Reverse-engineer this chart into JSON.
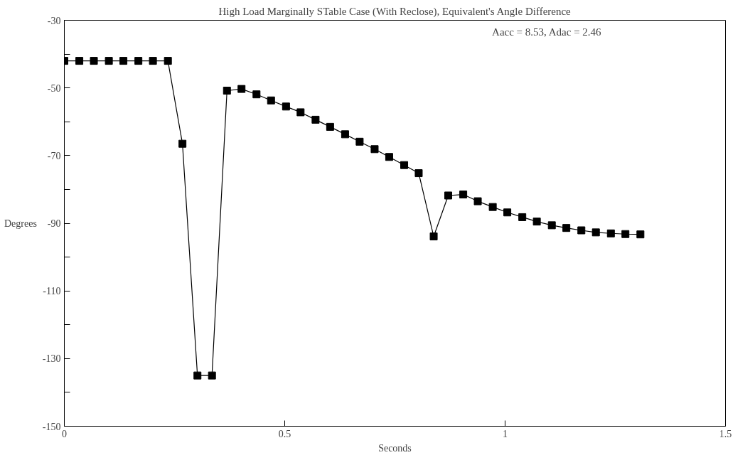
{
  "chart_data": {
    "type": "line",
    "title": "High Load Marginally STable Case (With Reclose), Equivalent's Angle Difference",
    "xlabel": "Seconds",
    "ylabel": "Degrees",
    "x": [
      0,
      0.034,
      0.067,
      0.101,
      0.134,
      0.168,
      0.201,
      0.235,
      0.268,
      0.302,
      0.335,
      0.369,
      0.402,
      0.436,
      0.469,
      0.503,
      0.536,
      0.57,
      0.603,
      0.637,
      0.67,
      0.704,
      0.737,
      0.771,
      0.804,
      0.838,
      0.871,
      0.905,
      0.938,
      0.972,
      1.005,
      1.039,
      1.072,
      1.106,
      1.139,
      1.173,
      1.206,
      1.24,
      1.273,
      1.307
    ],
    "series": [
      {
        "color": "#000000",
        "values": [
          -42,
          -42,
          -42,
          -42,
          -42,
          -42,
          -42,
          -42,
          -66.5,
          -135,
          -135,
          -50.8,
          -50.3,
          -51.9,
          -53.7,
          -55.5,
          -57.2,
          -59.4,
          -61.5,
          -63.7,
          -65.9,
          -68.1,
          -70.4,
          -72.8,
          -75.2,
          -93.9,
          -81.8,
          -81.5,
          -83.5,
          -85.2,
          -86.8,
          -88.2,
          -89.5,
          -90.6,
          -91.4,
          -92.1,
          -92.7,
          -93,
          -93.2,
          -93.3
        ]
      }
    ],
    "xlim": [
      0,
      1.5
    ],
    "xticks": [
      0,
      0.5,
      1,
      1.5
    ],
    "ylim": [
      -150,
      -30
    ],
    "yticks": [
      -150,
      {
        "value": -140,
        "label": null
      },
      -130,
      {
        "value": -120,
        "label": null
      },
      -110,
      {
        "value": -100,
        "label": null
      },
      -90,
      {
        "value": -80,
        "label": null
      },
      -70,
      {
        "value": -60,
        "label": null
      },
      -50,
      {
        "value": -40,
        "label": null
      },
      -30
    ],
    "annotations": [
      "Aacc  =  8.53,   Adac  =  2.46"
    ],
    "grid": false,
    "marker": "square",
    "line_style": "solid"
  }
}
